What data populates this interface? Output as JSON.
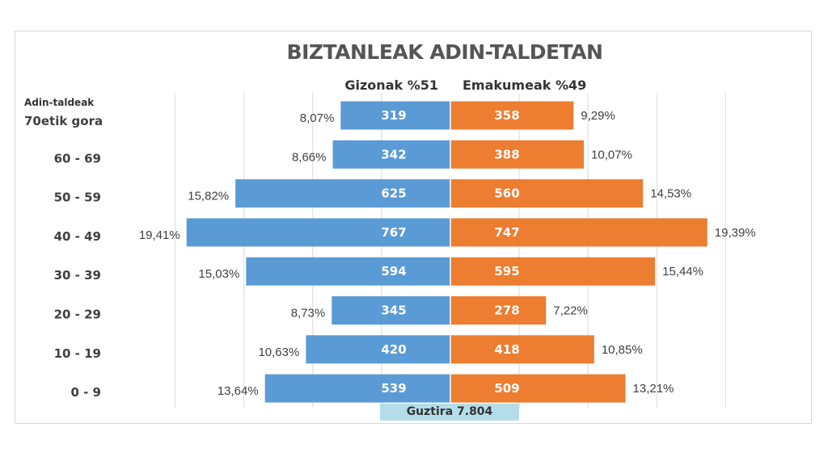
{
  "title": "BIZTANLEAK ADIN-TALDETAN",
  "men_header": "Gizonak %51",
  "women_header": "Emakumeak %49",
  "age_heading": "Adin-taldeak",
  "total_label": "Guztira 7.804",
  "colors": {
    "men": "#5b9bd5",
    "women": "#ed7d31",
    "grid": "#d9d9d9",
    "total_bg": "#b4dde9"
  },
  "chart_data": {
    "type": "bar",
    "orientation": "horizontal-population-pyramid",
    "categories": [
      "70etik gora",
      "60 - 69",
      "50 - 59",
      "40 - 49",
      "30 - 39",
      "20 - 29",
      "10 - 19",
      "0 - 9"
    ],
    "series": [
      {
        "name": "Gizonak %51",
        "values": [
          319,
          342,
          625,
          767,
          594,
          345,
          420,
          539
        ],
        "percent_labels": [
          "8,07%",
          "8,66%",
          "15,82%",
          "19,41%",
          "15,03%",
          "8,73%",
          "10,63%",
          "13,64%"
        ]
      },
      {
        "name": "Emakumeak %49",
        "values": [
          358,
          388,
          560,
          747,
          595,
          278,
          418,
          509
        ],
        "percent_labels": [
          "9,29%",
          "10,07%",
          "14,53%",
          "19,39%",
          "15,44%",
          "7,22%",
          "10,85%",
          "13,21%"
        ]
      }
    ],
    "title": "BIZTANLEAK ADIN-TALDETAN",
    "xlabel": "",
    "ylabel": "Adin-taldeak",
    "grid": true
  }
}
